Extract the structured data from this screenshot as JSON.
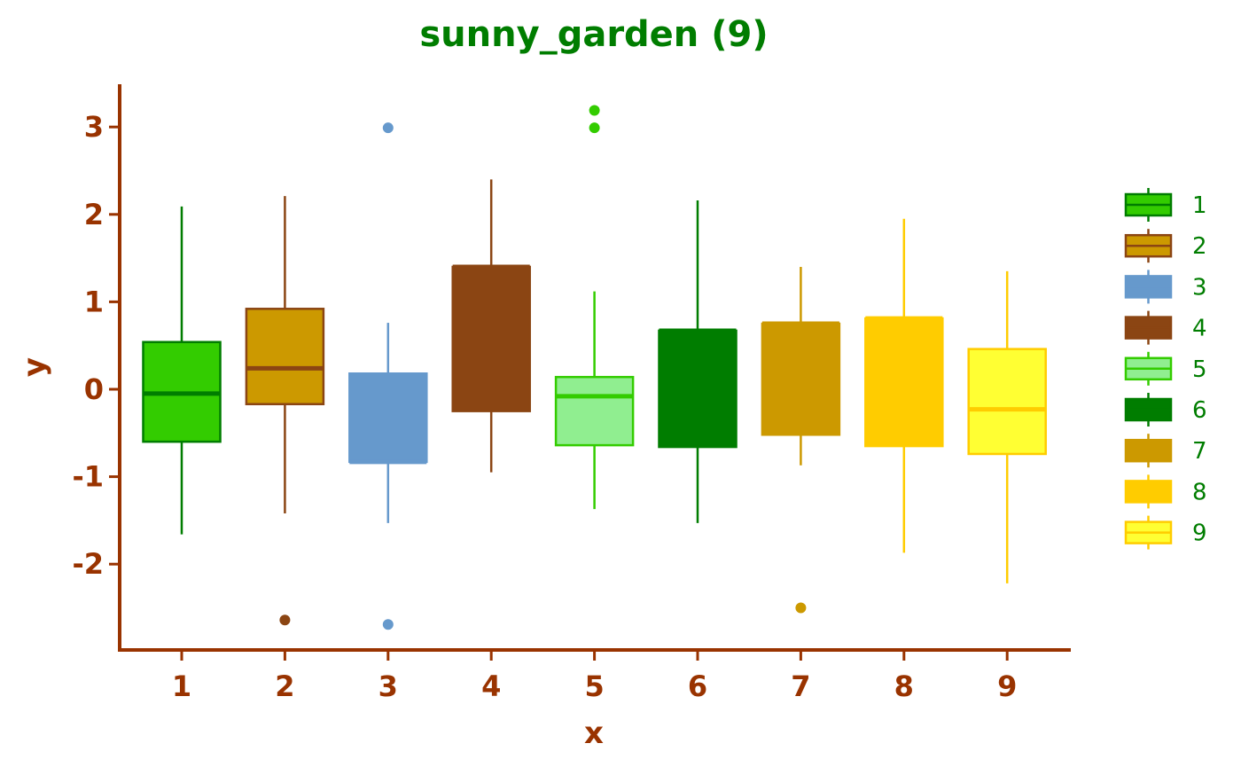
{
  "chart_data": {
    "type": "box",
    "title": "sunny_garden (9)",
    "xlabel": "x",
    "ylabel": "y",
    "categories": [
      "1",
      "2",
      "3",
      "4",
      "5",
      "6",
      "7",
      "8",
      "9"
    ],
    "y_ticks": [
      "-2",
      "-1",
      "0",
      "1",
      "2",
      "3"
    ],
    "ylim": [
      -3.0,
      3.5
    ],
    "grid": false,
    "legend_position": "right",
    "series": [
      {
        "category": "1",
        "whisker_low": -1.66,
        "q1": -0.6,
        "median": -0.05,
        "q3": 0.54,
        "whisker_high": 2.09,
        "outliers": [],
        "fill": "#33cc00",
        "edge": "#007d00"
      },
      {
        "category": "2",
        "whisker_low": -1.42,
        "q1": -0.17,
        "median": 0.24,
        "q3": 0.92,
        "whisker_high": 2.21,
        "outliers": [
          -2.64
        ],
        "fill": "#cc9900",
        "edge": "#8b4513"
      },
      {
        "category": "3",
        "whisker_low": -1.53,
        "q1": -0.83,
        "median": -0.83,
        "q3": 0.18,
        "whisker_high": 0.76,
        "outliers": [
          2.99,
          -2.69
        ],
        "fill": "#6699cc",
        "edge": "#6699cc"
      },
      {
        "category": "4",
        "whisker_low": -0.95,
        "q1": -0.25,
        "median": 1.4,
        "q3": 1.4,
        "whisker_high": 2.4,
        "outliers": [],
        "fill": "#8b4513",
        "edge": "#8b4513"
      },
      {
        "category": "5",
        "whisker_low": -1.37,
        "q1": -0.64,
        "median": -0.08,
        "q3": 0.14,
        "whisker_high": 1.12,
        "outliers": [
          3.19,
          2.99
        ],
        "fill": "#90ee90",
        "edge": "#33cc00"
      },
      {
        "category": "6",
        "whisker_low": -1.53,
        "q1": -0.66,
        "median": 0.67,
        "q3": 0.67,
        "whisker_high": 2.16,
        "outliers": [],
        "fill": "#007d00",
        "edge": "#007d00"
      },
      {
        "category": "7",
        "whisker_low": -0.87,
        "q1": -0.52,
        "median": 0.75,
        "q3": 0.75,
        "whisker_high": 1.4,
        "outliers": [
          -2.5
        ],
        "fill": "#cc9900",
        "edge": "#cc9900"
      },
      {
        "category": "8",
        "whisker_low": -1.87,
        "q1": -0.65,
        "median": 0.81,
        "q3": 0.81,
        "whisker_high": 1.95,
        "outliers": [],
        "fill": "#ffcc00",
        "edge": "#ffcc00"
      },
      {
        "category": "9",
        "whisker_low": -2.22,
        "q1": -0.74,
        "median": -0.23,
        "q3": 0.46,
        "whisker_high": 1.35,
        "outliers": [],
        "fill": "#ffff33",
        "edge": "#ffcc00"
      }
    ],
    "colors": {
      "title": "#007d00",
      "axis": "#993300",
      "legend_text": "#007d00"
    }
  }
}
